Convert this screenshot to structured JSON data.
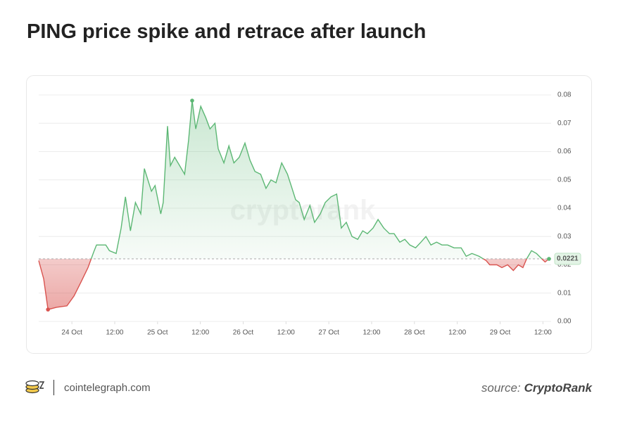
{
  "chart_data": {
    "type": "line",
    "title": "PING price spike and retrace after launch",
    "watermark": "cryptorank",
    "site": "cointelegraph.com",
    "source_prefix": "source:",
    "source": "CryptoRank",
    "baseline": 0.0221,
    "baseline_label": "0.0221",
    "x": [
      -9.3,
      -7.9,
      -6.7,
      -4.3,
      -1.4,
      0.6,
      2.6,
      4.5,
      6.1,
      6.9,
      9.5,
      10.5,
      12.4,
      13.8,
      15,
      16.4,
      17.8,
      19.3,
      20.3,
      21.3,
      22.3,
      23.3,
      24.9,
      25.6,
      26.8,
      27.6,
      28.8,
      30.2,
      31.6,
      32.7,
      33.7,
      34.7,
      36.1,
      37.5,
      38.7,
      40.1,
      41,
      42.6,
      44,
      45.4,
      46.9,
      48.5,
      49.9,
      51.3,
      52.9,
      54.4,
      55.8,
      57.2,
      58.8,
      60.4,
      61.7,
      62.7,
      63.7,
      65.1,
      66.7,
      68,
      69.6,
      71,
      72.6,
      74.2,
      75.5,
      76.9,
      78.5,
      80.1,
      81.5,
      82.8,
      84.4,
      85.8,
      87.4,
      89,
      90.3,
      91.9,
      93.3,
      94.7,
      96.3,
      97.8,
      99.2,
      100.6,
      102.2,
      103.7,
      105.3,
      107.1,
      109.1,
      110.5,
      112.1,
      114.1,
      116.1,
      117.1,
      119.1,
      120.5,
      122.1,
      123.7,
      125.1,
      126.4,
      127.4,
      128.8,
      130.2,
      131.8,
      132.6,
      133.7
    ],
    "series": [
      {
        "name": "PING",
        "color": "#5cb774",
        "negative_color": "#d9534f",
        "values": [
          0.0215,
          0.015,
          0.0042,
          0.005,
          0.0055,
          0.009,
          0.014,
          0.019,
          0.0245,
          0.027,
          0.027,
          0.025,
          0.024,
          0.033,
          0.044,
          0.032,
          0.042,
          0.038,
          0.054,
          0.05,
          0.046,
          0.048,
          0.038,
          0.042,
          0.069,
          0.055,
          0.058,
          0.055,
          0.052,
          0.064,
          0.078,
          0.068,
          0.076,
          0.072,
          0.068,
          0.07,
          0.061,
          0.056,
          0.062,
          0.056,
          0.058,
          0.063,
          0.057,
          0.053,
          0.052,
          0.047,
          0.05,
          0.049,
          0.056,
          0.052,
          0.047,
          0.043,
          0.042,
          0.036,
          0.041,
          0.035,
          0.038,
          0.042,
          0.044,
          0.045,
          0.033,
          0.035,
          0.03,
          0.029,
          0.032,
          0.031,
          0.033,
          0.036,
          0.033,
          0.031,
          0.031,
          0.028,
          0.029,
          0.027,
          0.026,
          0.028,
          0.03,
          0.027,
          0.028,
          0.027,
          0.027,
          0.026,
          0.026,
          0.023,
          0.024,
          0.023,
          0.0215,
          0.02,
          0.02,
          0.019,
          0.02,
          0.018,
          0.02,
          0.019,
          0.022,
          0.025,
          0.024,
          0.022,
          0.021,
          0.0221
        ]
      }
    ],
    "xlim": [
      -9.3,
      134.3
    ],
    "xticks": [
      {
        "value": 0,
        "label": "24 Oct"
      },
      {
        "value": 12,
        "label": "12:00"
      },
      {
        "value": 24,
        "label": "25 Oct"
      },
      {
        "value": 36,
        "label": "12:00"
      },
      {
        "value": 48,
        "label": "26 Oct"
      },
      {
        "value": 60,
        "label": "12:00"
      },
      {
        "value": 72,
        "label": "27 Oct"
      },
      {
        "value": 84,
        "label": "12:00"
      },
      {
        "value": 96,
        "label": "28 Oct"
      },
      {
        "value": 108,
        "label": "12:00"
      },
      {
        "value": 120,
        "label": "29 Oct"
      },
      {
        "value": 132,
        "label": "12:00"
      }
    ],
    "ylim": [
      0,
      0.08
    ],
    "yticks": [
      {
        "value": 0,
        "label": "0.00"
      },
      0.01,
      0.02,
      0.03,
      0.04,
      0.05,
      0.06,
      0.07,
      0.08
    ],
    "grid": true
  }
}
